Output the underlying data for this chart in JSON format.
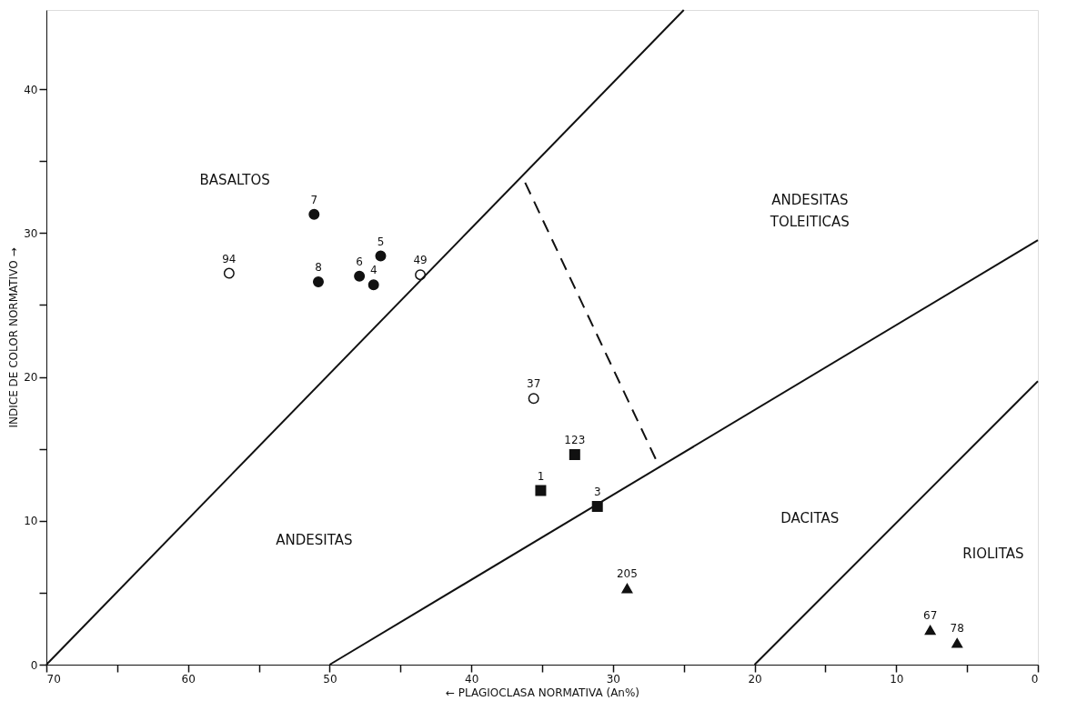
{
  "chart_data": {
    "type": "scatter",
    "xlabel": "← PLAGIOCLASA NORMATIVA (An%)",
    "ylabel": "INDICE DE COLOR NORMATIVO →",
    "xlim": [
      70,
      0
    ],
    "ylim": [
      0,
      45.5
    ],
    "xticks": [
      70,
      {
        "value": 65,
        "label": null
      },
      60,
      {
        "value": 55,
        "label": null
      },
      50,
      {
        "value": 45,
        "label": null
      },
      40,
      {
        "value": 35,
        "label": null
      },
      30,
      {
        "value": 25,
        "label": null
      },
      20,
      {
        "value": 15,
        "label": null
      },
      10,
      {
        "value": 5,
        "label": null
      },
      0
    ],
    "yticks": [
      0,
      {
        "value": 5,
        "label": null
      },
      10,
      {
        "value": 15,
        "label": null
      },
      20,
      {
        "value": 25,
        "label": null
      },
      30,
      {
        "value": 35,
        "label": null
      },
      40
    ],
    "grid": false,
    "series": [
      {
        "marker": "circle",
        "color": "#111111",
        "x": [
          51.1,
          50.8,
          47.9,
          46.9,
          46.4
        ],
        "values": [
          31.3,
          26.6,
          27.0,
          26.4,
          28.4
        ]
      },
      {
        "marker": "circle",
        "color": "#ffffff",
        "x": [
          57.1,
          43.6,
          35.6
        ],
        "values": [
          27.2,
          27.1,
          18.5
        ]
      },
      {
        "marker": "square",
        "color": "#111111",
        "x": [
          32.7,
          35.1,
          31.1
        ],
        "values": [
          14.6,
          12.1,
          11.0
        ]
      },
      {
        "marker": "triangle",
        "color": "#111111",
        "x": [
          29.0,
          7.6,
          5.7
        ],
        "values": [
          5.3,
          2.4,
          1.5
        ]
      },
      {
        "type": "line",
        "line_style": "solid",
        "color": "#111111",
        "x": [
          70,
          25
        ],
        "values": [
          0,
          45.5
        ]
      },
      {
        "type": "line",
        "line_style": "solid",
        "color": "#111111",
        "x": [
          50,
          0
        ],
        "values": [
          0,
          29.5
        ]
      },
      {
        "type": "line",
        "line_style": "solid",
        "color": "#111111",
        "x": [
          20,
          0
        ],
        "values": [
          0,
          19.7
        ]
      },
      {
        "type": "line",
        "line_style": "dashed",
        "color": "#111111",
        "x": [
          36.2,
          26.7
        ],
        "values": [
          33.5,
          13.7
        ]
      }
    ],
    "annotations": [
      {
        "text": "7",
        "x": 51.1,
        "y": 31.3
      },
      {
        "text": "8",
        "x": 50.8,
        "y": 26.6
      },
      {
        "text": "6",
        "x": 47.9,
        "y": 27.0
      },
      {
        "text": "4",
        "x": 46.9,
        "y": 26.4
      },
      {
        "text": "5",
        "x": 46.4,
        "y": 28.4
      },
      {
        "text": "94",
        "x": 57.1,
        "y": 27.2
      },
      {
        "text": "49",
        "x": 43.6,
        "y": 27.1
      },
      {
        "text": "37",
        "x": 35.6,
        "y": 18.5
      },
      {
        "text": "123",
        "x": 32.7,
        "y": 14.6
      },
      {
        "text": "1",
        "x": 35.1,
        "y": 12.1
      },
      {
        "text": "3",
        "x": 31.1,
        "y": 11.0
      },
      {
        "text": "205",
        "x": 29.0,
        "y": 5.3
      },
      {
        "text": "67",
        "x": 7.6,
        "y": 2.4
      },
      {
        "text": "78",
        "x": 5.7,
        "y": 1.5
      },
      "BASALTOS",
      "ANDESITAS TOLEITICAS",
      "ANDESITAS",
      "DACITAS",
      "RIOLITAS"
    ]
  }
}
